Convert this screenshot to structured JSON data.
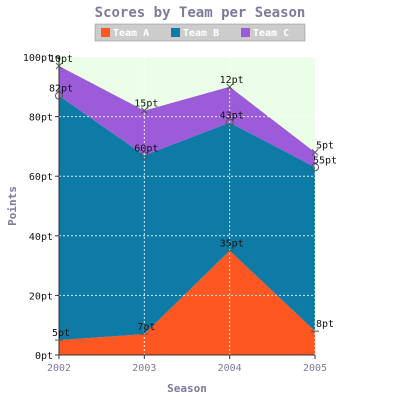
{
  "chart_data": {
    "type": "area",
    "stacked": true,
    "title": "Scores by Team per Season",
    "xlabel": "Season",
    "ylabel": "Points",
    "categories": [
      "2002",
      "2003",
      "2004",
      "2005"
    ],
    "ylim": [
      0,
      100
    ],
    "y_ticks": [
      0,
      20,
      40,
      60,
      80,
      100
    ],
    "y_tick_labels": [
      "0pt",
      "20pt",
      "40pt",
      "60pt",
      "80pt",
      "100pt"
    ],
    "grid": true,
    "legend": {
      "placement": "top",
      "entries": [
        "Team A",
        "Team B",
        "Team C"
      ]
    },
    "colors": {
      "plot_background": "#ebffe8",
      "title_text": "#7b7b9b",
      "legend_background": "#cccccc",
      "Team A": "#ff5722",
      "Team B": "#0e7aa6",
      "Team C": "#9c5bd8"
    },
    "series": [
      {
        "name": "Team A",
        "values": [
          5,
          7,
          35,
          8
        ],
        "labels": [
          "5pt",
          "7pt",
          "35pt",
          "8pt"
        ]
      },
      {
        "name": "Team B",
        "values": [
          82,
          60,
          43,
          55
        ],
        "labels": [
          "82pt",
          "60pt",
          "43pt",
          "55pt"
        ]
      },
      {
        "name": "Team C",
        "values": [
          10,
          15,
          12,
          5
        ],
        "labels": [
          "10pt",
          "15pt",
          "12pt",
          "5pt"
        ]
      }
    ]
  }
}
